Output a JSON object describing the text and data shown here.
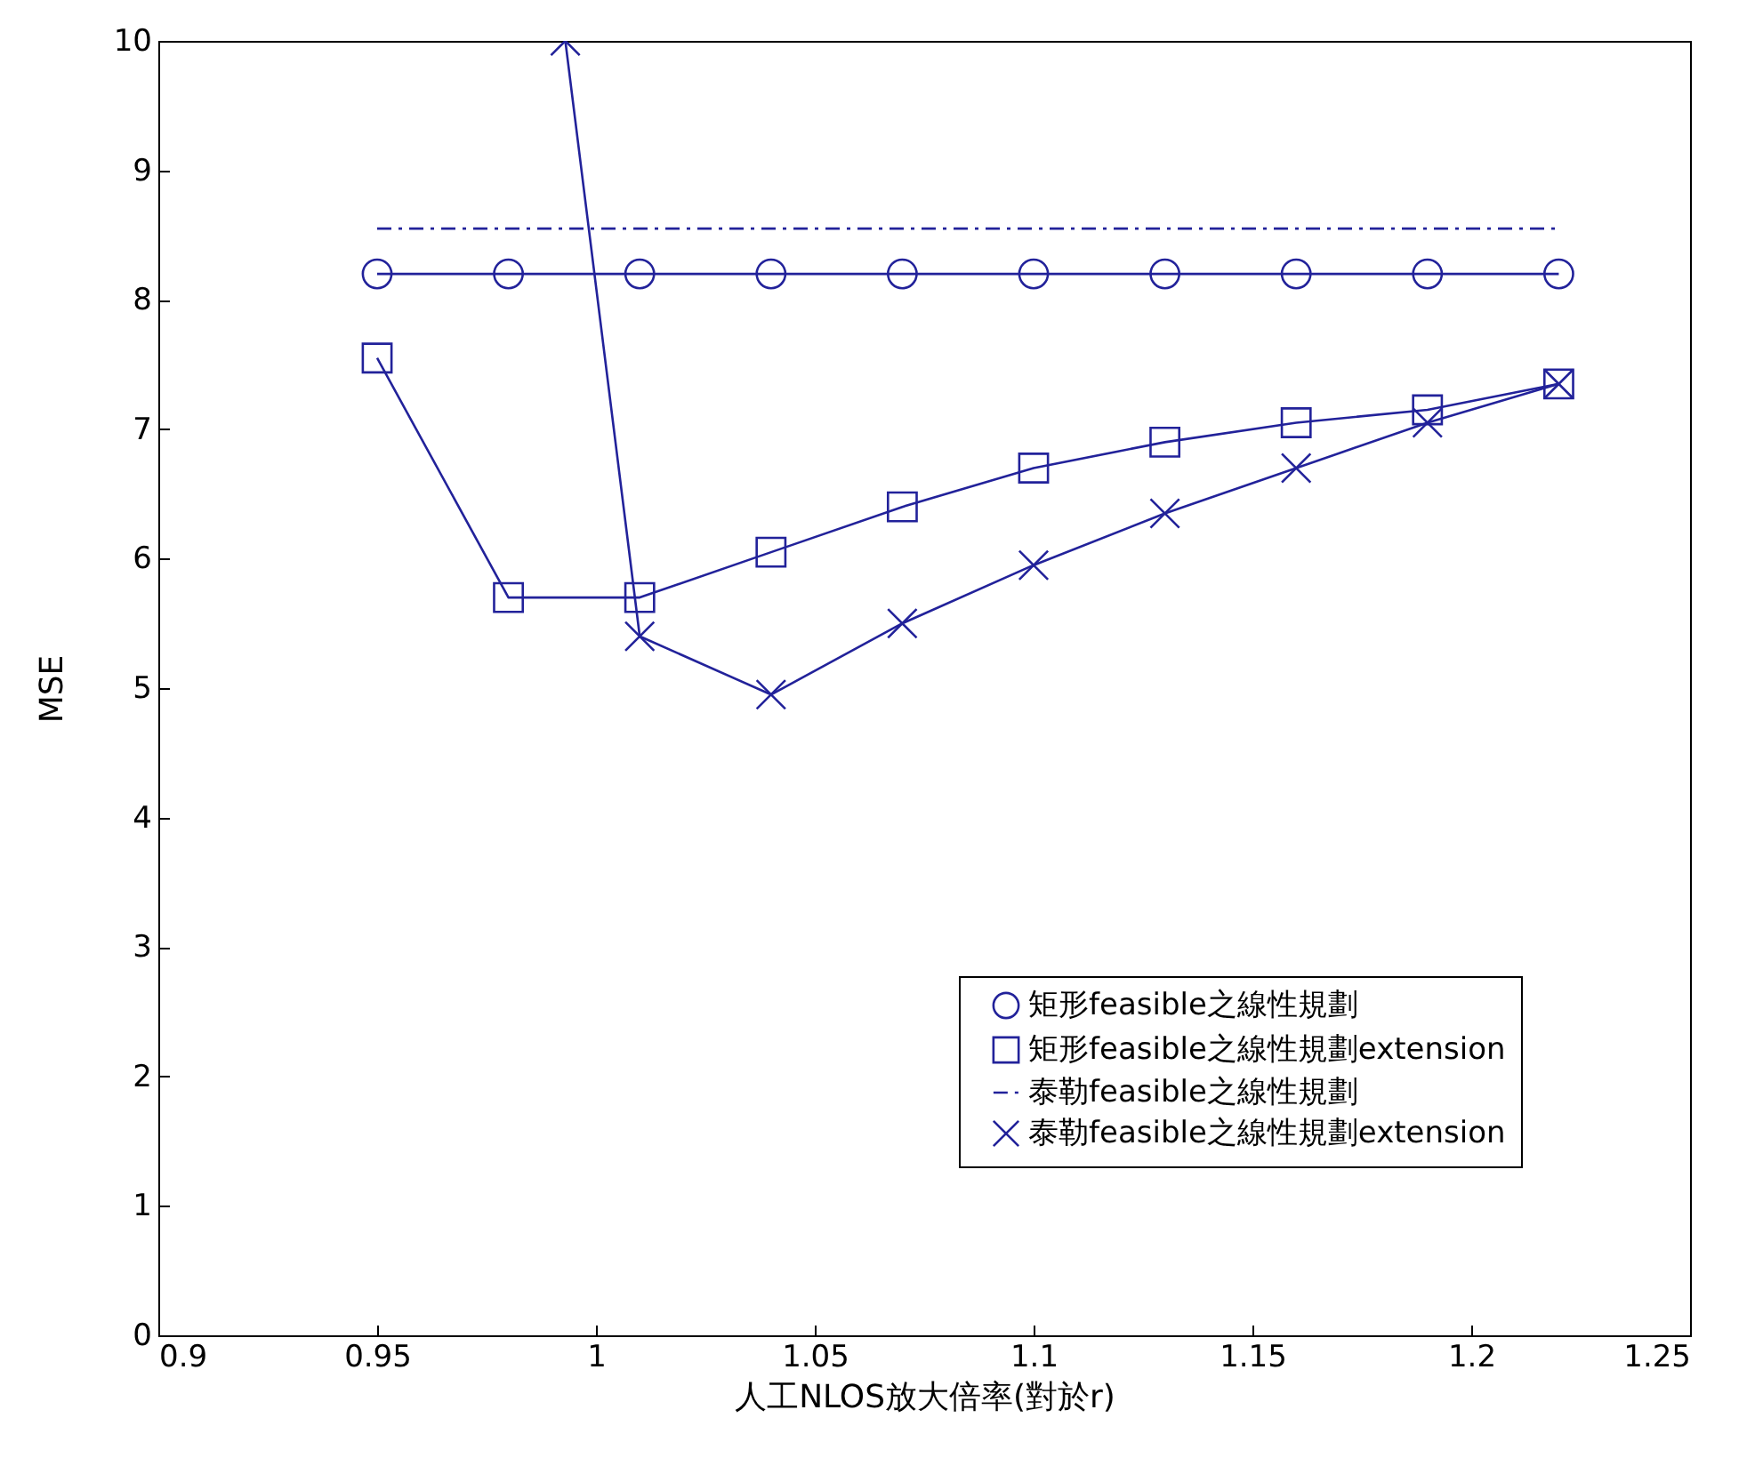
{
  "chart_data": {
    "type": "line",
    "xlabel": "人工NLOS放大倍率(對於r)",
    "ylabel": "MSE",
    "x": [
      0.95,
      0.98,
      1.01,
      1.04,
      1.07,
      1.1,
      1.13,
      1.16,
      1.19,
      1.22
    ],
    "series": [
      {
        "name": "矩形feasible之線性規劃",
        "color": "#22229a",
        "marker": "circle",
        "line_style": "solid",
        "values": [
          8.2,
          8.2,
          8.2,
          8.2,
          8.2,
          8.2,
          8.2,
          8.2,
          8.2,
          8.2
        ]
      },
      {
        "name": "矩形feasible之線性規劃extension",
        "color": "#22229a",
        "marker": "square",
        "line_style": "solid",
        "values": [
          7.55,
          5.7,
          5.7,
          6.05,
          6.4,
          6.7,
          6.9,
          7.05,
          7.15,
          7.35
        ]
      },
      {
        "name": "泰勒feasible之線性規劃",
        "color": "#22229a",
        "marker": "none",
        "line_style": "dashdot",
        "values": [
          8.55,
          8.55,
          8.55,
          8.55,
          8.55,
          8.55,
          8.55,
          8.55,
          8.55,
          8.55
        ]
      },
      {
        "name": "泰勒feasible之線性規劃extension",
        "color": "#22229a",
        "marker": "cross",
        "line_style": "solid",
        "x": [
          0.993,
          1.01,
          1.04,
          1.07,
          1.1,
          1.13,
          1.16,
          1.19,
          1.22
        ],
        "values": [
          10,
          5.4,
          4.95,
          5.5,
          5.95,
          6.35,
          6.7,
          7.05,
          7.35
        ]
      }
    ],
    "xlim": [
      0.9,
      1.25
    ],
    "xticks": [
      0.9,
      0.95,
      1,
      1.05,
      1.1,
      1.15,
      1.2,
      1.25
    ],
    "ylim": [
      0,
      10
    ],
    "yticks": [
      0,
      1,
      2,
      3,
      4,
      5,
      6,
      7,
      8,
      9,
      10
    ],
    "grid": false,
    "legend": "bottom right"
  }
}
